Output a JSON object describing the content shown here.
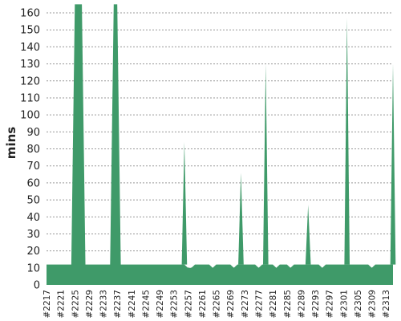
{
  "chart_data": {
    "type": "area",
    "ylabel": "mins",
    "xlabel": "",
    "title": "",
    "ylim": [
      0,
      165
    ],
    "yticks": [
      0,
      10,
      20,
      30,
      40,
      50,
      60,
      70,
      80,
      90,
      100,
      110,
      120,
      130,
      140,
      150,
      160
    ],
    "grid": true,
    "fill_color": "#3f9a69",
    "grid_color": "#999999",
    "build_start": 2217,
    "build_end": 2315,
    "x_tick_labels": [
      "#2217",
      "#2221",
      "#2225",
      "#2229",
      "#2233",
      "#2237",
      "#2241",
      "#2245",
      "#2249",
      "#2253",
      "#2257",
      "#2261",
      "#2265",
      "#2269",
      "#2273",
      "#2277",
      "#2281",
      "#2285",
      "#2289",
      "#2293",
      "#2297",
      "#2301",
      "#2305",
      "#2309",
      "#2313"
    ],
    "values": [
      12,
      12,
      12,
      12,
      12,
      12,
      12,
      12,
      165,
      165,
      165,
      12,
      12,
      12,
      12,
      12,
      12,
      12,
      12,
      165,
      165,
      12,
      12,
      12,
      12,
      12,
      12,
      12,
      12,
      12,
      12,
      12,
      12,
      12,
      12,
      12,
      12,
      12,
      12,
      12,
      10,
      10,
      12,
      12,
      12,
      12,
      12,
      10,
      12,
      12,
      12,
      12,
      12,
      10,
      12,
      12,
      12,
      12,
      12,
      12,
      10,
      12,
      12,
      12,
      12,
      10,
      12,
      12,
      12,
      10,
      12,
      12,
      12,
      12,
      12,
      12,
      12,
      12,
      10,
      12,
      12,
      12,
      12,
      12,
      12,
      12,
      12,
      12,
      12,
      12,
      12,
      12,
      10,
      12,
      12,
      12,
      12,
      12,
      12
    ],
    "spikes": [
      {
        "build": 2256,
        "value": 84
      },
      {
        "build": 2272,
        "value": 66
      },
      {
        "build": 2279,
        "value": 130
      },
      {
        "build": 2291,
        "value": 47
      },
      {
        "build": 2302,
        "value": 157
      },
      {
        "build": 2315,
        "value": 130
      }
    ]
  }
}
